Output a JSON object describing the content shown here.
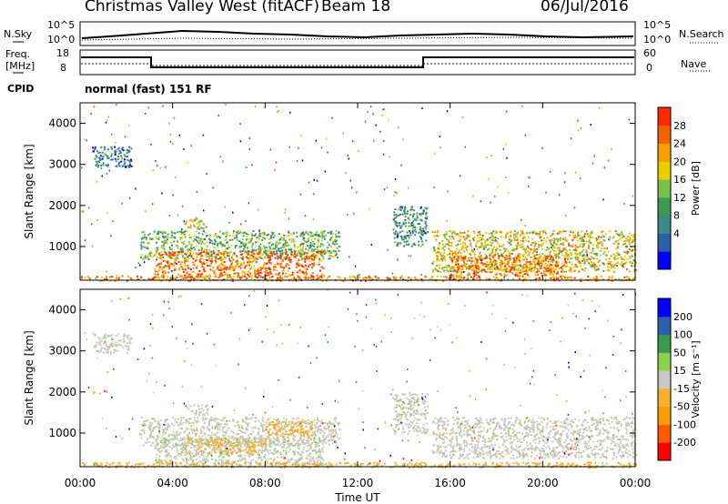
{
  "header": {
    "station": "Christmas Valley West (fitACF)",
    "beam": "Beam 18",
    "date": "06/Jul/2016"
  },
  "summary": {
    "nsky_label": "N.Sky",
    "nsky_ticks": [
      "10^5",
      "10^0"
    ],
    "nsearch_label": "N.Search",
    "nsearch_ticks": [
      "10^5",
      "10^0"
    ],
    "freq_label": "Freq.",
    "freq_unit": "[MHz]",
    "freq_ticks": [
      "18",
      "8"
    ],
    "nave_label": "Nave",
    "nave_ticks": [
      "60",
      "0"
    ],
    "cpid_label": "CPID",
    "cpid_value": "normal (fast) 151 RF"
  },
  "chart_data": [
    {
      "type": "heatmap",
      "panel": "power",
      "ylabel": "Slant Range [km]",
      "yticks": [
        "1000",
        "2000",
        "3000",
        "4000"
      ],
      "ylim": [
        180,
        4500
      ],
      "xlim_hours": [
        0,
        24
      ],
      "colorbar_label": "Power [dB]",
      "colorbar_ticks": [
        "28",
        "24",
        "20",
        "16",
        "12",
        "8",
        "4"
      ],
      "colors": [
        "#0000ff",
        "#2b5fa8",
        "#3a8a8a",
        "#3c9a50",
        "#74c24a",
        "#e8d000",
        "#f7a000",
        "#f56000",
        "#ff2a00"
      ],
      "regions": [
        {
          "t": [
            2.6,
            11.2
          ],
          "r": [
            700,
            1400
          ],
          "v": 14
        },
        {
          "t": [
            3.2,
            10.5
          ],
          "r": [
            250,
            900
          ],
          "v": 26
        },
        {
          "t": [
            15.2,
            24
          ],
          "r": [
            400,
            1400
          ],
          "v": 20
        },
        {
          "t": [
            16,
            21
          ],
          "r": [
            300,
            800
          ],
          "v": 26
        },
        {
          "t": [
            0,
            24
          ],
          "r": [
            180,
            300
          ],
          "v": 24
        },
        {
          "t": [
            0.5,
            2.2
          ],
          "r": [
            2950,
            3450
          ],
          "v": 8
        },
        {
          "t": [
            4.5,
            5.5
          ],
          "r": [
            1450,
            1700
          ],
          "v": 18
        },
        {
          "t": [
            13.5,
            15.0
          ],
          "r": [
            1000,
            2000
          ],
          "v": 10
        }
      ]
    },
    {
      "type": "heatmap",
      "panel": "velocity",
      "ylabel": "Slant Range [km]",
      "yticks": [
        "1000",
        "2000",
        "3000",
        "4000"
      ],
      "ylim": [
        180,
        4500
      ],
      "xlim_hours": [
        0,
        24
      ],
      "xticks": [
        "00:00",
        "04:00",
        "08:00",
        "12:00",
        "16:00",
        "20:00",
        "00:00"
      ],
      "xlabel": "Time UT",
      "colorbar_label": "Velocity [m s⁻¹]",
      "colorbar_ticks": [
        "200",
        "100",
        "50",
        "15",
        "-15",
        "-50",
        "-100",
        "-200"
      ],
      "colors": [
        "#ff0000",
        "#ff5a00",
        "#ff9a00",
        "#f5b030",
        "#c8c8c0",
        "#8ed050",
        "#3c9a50",
        "#2b5fa8",
        "#0000ff"
      ],
      "regions": [
        {
          "t": [
            2.6,
            11.2
          ],
          "r": [
            700,
            1400
          ],
          "v": 0
        },
        {
          "t": [
            3.2,
            10.5
          ],
          "r": [
            250,
            900
          ],
          "v": 10
        },
        {
          "t": [
            4.5,
            8.0
          ],
          "r": [
            500,
            900
          ],
          "v": -40
        },
        {
          "t": [
            8.0,
            10.0
          ],
          "r": [
            900,
            1300
          ],
          "v": -60
        },
        {
          "t": [
            15.2,
            24
          ],
          "r": [
            400,
            1400
          ],
          "v": 0
        },
        {
          "t": [
            0,
            24
          ],
          "r": [
            180,
            300
          ],
          "v": -60
        },
        {
          "t": [
            0.5,
            2.2
          ],
          "r": [
            2950,
            3450
          ],
          "v": 0
        },
        {
          "t": [
            4.5,
            5.5
          ],
          "r": [
            1450,
            1700
          ],
          "v": 0
        },
        {
          "t": [
            13.5,
            15.0
          ],
          "r": [
            1000,
            2000
          ],
          "v": 5
        }
      ]
    }
  ]
}
